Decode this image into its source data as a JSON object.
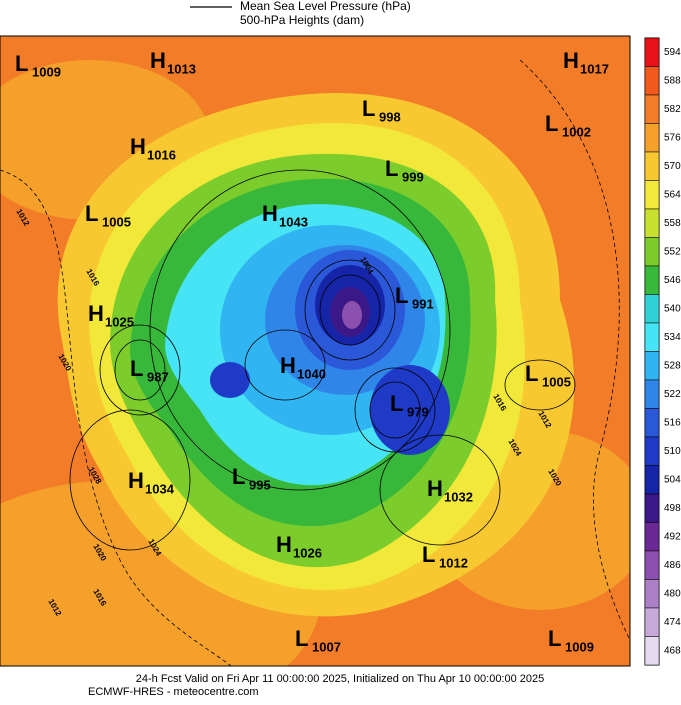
{
  "legend": {
    "pressure": "Mean Sea Level Pressure (hPa)",
    "heights": "500-hPa Heights (dam)"
  },
  "colorbar": [
    {
      "value": 594,
      "color": "#e8101a"
    },
    {
      "value": 588,
      "color": "#f05a1c"
    },
    {
      "value": 582,
      "color": "#f27c28"
    },
    {
      "value": 576,
      "color": "#f5a02a"
    },
    {
      "value": 570,
      "color": "#f8c830"
    },
    {
      "value": 564,
      "color": "#f2e83a"
    },
    {
      "value": 558,
      "color": "#c8e02e"
    },
    {
      "value": 552,
      "color": "#7ccc2c"
    },
    {
      "value": 546,
      "color": "#38b83a"
    },
    {
      "value": 540,
      "color": "#30d2d8"
    },
    {
      "value": 534,
      "color": "#46e4f4"
    },
    {
      "value": 528,
      "color": "#30b4f2"
    },
    {
      "value": 522,
      "color": "#2f86e8"
    },
    {
      "value": 516,
      "color": "#2a58d8"
    },
    {
      "value": 510,
      "color": "#1f3ac6"
    },
    {
      "value": 504,
      "color": "#1624a8"
    },
    {
      "value": 498,
      "color": "#3a1888"
    },
    {
      "value": 492,
      "color": "#6a2896"
    },
    {
      "value": 486,
      "color": "#8c50ae"
    },
    {
      "value": 480,
      "color": "#ac80c6"
    },
    {
      "value": 474,
      "color": "#c8aada"
    },
    {
      "value": 468,
      "color": "#e6daf0"
    }
  ],
  "centers": [
    {
      "kind": "L",
      "value": 1009
    },
    {
      "kind": "H",
      "value": 1013
    },
    {
      "kind": "H",
      "value": 1017
    },
    {
      "kind": "L",
      "value": 998
    },
    {
      "kind": "L",
      "value": 1002
    },
    {
      "kind": "H",
      "value": 1016
    },
    {
      "kind": "L",
      "value": 999
    },
    {
      "kind": "L",
      "value": 1005
    },
    {
      "kind": "H",
      "value": 1043
    },
    {
      "kind": "L",
      "value": 991
    },
    {
      "kind": "H",
      "value": 1025
    },
    {
      "kind": "L",
      "value": 987
    },
    {
      "kind": "H",
      "value": 1040
    },
    {
      "kind": "L",
      "value": 1005
    },
    {
      "kind": "L",
      "value": 979
    },
    {
      "kind": "H",
      "value": 1034
    },
    {
      "kind": "L",
      "value": 995
    },
    {
      "kind": "H",
      "value": 1032
    },
    {
      "kind": "H",
      "value": 1026
    },
    {
      "kind": "L",
      "value": 1012
    },
    {
      "kind": "L",
      "value": 1007
    },
    {
      "kind": "L",
      "value": 1009
    }
  ],
  "contour_labels": [
    "1012",
    "1016",
    "1020",
    "1028",
    "1024",
    "1020",
    "1016",
    "1012",
    "1004",
    "1024",
    "1020",
    "1016",
    "1012"
  ],
  "footer": {
    "line1": "24-h Fcst Valid on Fri Apr 11 00:00:00 2025, Initialized on Thu Apr 10 00:00:00 2025",
    "line2": "ECMWF-HRES  - meteocentre.com"
  }
}
